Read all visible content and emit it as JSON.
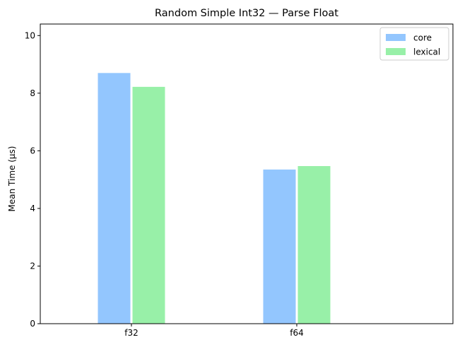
{
  "chart_data": {
    "type": "bar",
    "title": "Random Simple Int32 — Parse Float",
    "xlabel": "",
    "ylabel": "Mean Time (µs)",
    "categories": [
      "f32",
      "f64"
    ],
    "series": [
      {
        "name": "core",
        "values": [
          8.7,
          5.35
        ],
        "color": "#93c6fe"
      },
      {
        "name": "lexical",
        "values": [
          8.22,
          5.47
        ],
        "color": "#98f0a8"
      }
    ],
    "ylim": [
      0,
      10.4
    ],
    "yticks": [
      0,
      2,
      4,
      6,
      8,
      10
    ],
    "grid": false,
    "legend_position": "top-right"
  }
}
